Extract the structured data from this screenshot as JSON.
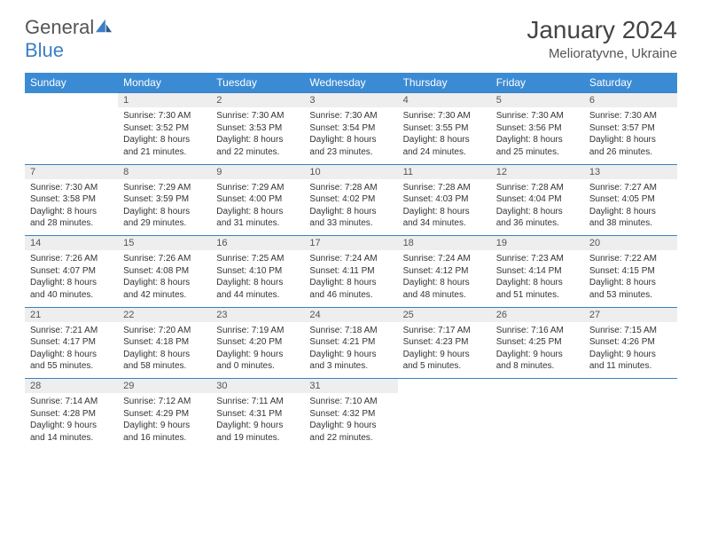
{
  "logo": {
    "text1": "General",
    "text2": "Blue"
  },
  "title": "January 2024",
  "location": "Melioratyvne, Ukraine",
  "colors": {
    "header_bg": "#3b8bd4",
    "header_fg": "#ffffff",
    "border": "#3b7fc4",
    "daynum_bg": "#eeeeee"
  },
  "weekdays": [
    "Sunday",
    "Monday",
    "Tuesday",
    "Wednesday",
    "Thursday",
    "Friday",
    "Saturday"
  ],
  "weeks": [
    [
      null,
      {
        "n": "1",
        "sr": "Sunrise: 7:30 AM",
        "ss": "Sunset: 3:52 PM",
        "d1": "Daylight: 8 hours",
        "d2": "and 21 minutes."
      },
      {
        "n": "2",
        "sr": "Sunrise: 7:30 AM",
        "ss": "Sunset: 3:53 PM",
        "d1": "Daylight: 8 hours",
        "d2": "and 22 minutes."
      },
      {
        "n": "3",
        "sr": "Sunrise: 7:30 AM",
        "ss": "Sunset: 3:54 PM",
        "d1": "Daylight: 8 hours",
        "d2": "and 23 minutes."
      },
      {
        "n": "4",
        "sr": "Sunrise: 7:30 AM",
        "ss": "Sunset: 3:55 PM",
        "d1": "Daylight: 8 hours",
        "d2": "and 24 minutes."
      },
      {
        "n": "5",
        "sr": "Sunrise: 7:30 AM",
        "ss": "Sunset: 3:56 PM",
        "d1": "Daylight: 8 hours",
        "d2": "and 25 minutes."
      },
      {
        "n": "6",
        "sr": "Sunrise: 7:30 AM",
        "ss": "Sunset: 3:57 PM",
        "d1": "Daylight: 8 hours",
        "d2": "and 26 minutes."
      }
    ],
    [
      {
        "n": "7",
        "sr": "Sunrise: 7:30 AM",
        "ss": "Sunset: 3:58 PM",
        "d1": "Daylight: 8 hours",
        "d2": "and 28 minutes."
      },
      {
        "n": "8",
        "sr": "Sunrise: 7:29 AM",
        "ss": "Sunset: 3:59 PM",
        "d1": "Daylight: 8 hours",
        "d2": "and 29 minutes."
      },
      {
        "n": "9",
        "sr": "Sunrise: 7:29 AM",
        "ss": "Sunset: 4:00 PM",
        "d1": "Daylight: 8 hours",
        "d2": "and 31 minutes."
      },
      {
        "n": "10",
        "sr": "Sunrise: 7:28 AM",
        "ss": "Sunset: 4:02 PM",
        "d1": "Daylight: 8 hours",
        "d2": "and 33 minutes."
      },
      {
        "n": "11",
        "sr": "Sunrise: 7:28 AM",
        "ss": "Sunset: 4:03 PM",
        "d1": "Daylight: 8 hours",
        "d2": "and 34 minutes."
      },
      {
        "n": "12",
        "sr": "Sunrise: 7:28 AM",
        "ss": "Sunset: 4:04 PM",
        "d1": "Daylight: 8 hours",
        "d2": "and 36 minutes."
      },
      {
        "n": "13",
        "sr": "Sunrise: 7:27 AM",
        "ss": "Sunset: 4:05 PM",
        "d1": "Daylight: 8 hours",
        "d2": "and 38 minutes."
      }
    ],
    [
      {
        "n": "14",
        "sr": "Sunrise: 7:26 AM",
        "ss": "Sunset: 4:07 PM",
        "d1": "Daylight: 8 hours",
        "d2": "and 40 minutes."
      },
      {
        "n": "15",
        "sr": "Sunrise: 7:26 AM",
        "ss": "Sunset: 4:08 PM",
        "d1": "Daylight: 8 hours",
        "d2": "and 42 minutes."
      },
      {
        "n": "16",
        "sr": "Sunrise: 7:25 AM",
        "ss": "Sunset: 4:10 PM",
        "d1": "Daylight: 8 hours",
        "d2": "and 44 minutes."
      },
      {
        "n": "17",
        "sr": "Sunrise: 7:24 AM",
        "ss": "Sunset: 4:11 PM",
        "d1": "Daylight: 8 hours",
        "d2": "and 46 minutes."
      },
      {
        "n": "18",
        "sr": "Sunrise: 7:24 AM",
        "ss": "Sunset: 4:12 PM",
        "d1": "Daylight: 8 hours",
        "d2": "and 48 minutes."
      },
      {
        "n": "19",
        "sr": "Sunrise: 7:23 AM",
        "ss": "Sunset: 4:14 PM",
        "d1": "Daylight: 8 hours",
        "d2": "and 51 minutes."
      },
      {
        "n": "20",
        "sr": "Sunrise: 7:22 AM",
        "ss": "Sunset: 4:15 PM",
        "d1": "Daylight: 8 hours",
        "d2": "and 53 minutes."
      }
    ],
    [
      {
        "n": "21",
        "sr": "Sunrise: 7:21 AM",
        "ss": "Sunset: 4:17 PM",
        "d1": "Daylight: 8 hours",
        "d2": "and 55 minutes."
      },
      {
        "n": "22",
        "sr": "Sunrise: 7:20 AM",
        "ss": "Sunset: 4:18 PM",
        "d1": "Daylight: 8 hours",
        "d2": "and 58 minutes."
      },
      {
        "n": "23",
        "sr": "Sunrise: 7:19 AM",
        "ss": "Sunset: 4:20 PM",
        "d1": "Daylight: 9 hours",
        "d2": "and 0 minutes."
      },
      {
        "n": "24",
        "sr": "Sunrise: 7:18 AM",
        "ss": "Sunset: 4:21 PM",
        "d1": "Daylight: 9 hours",
        "d2": "and 3 minutes."
      },
      {
        "n": "25",
        "sr": "Sunrise: 7:17 AM",
        "ss": "Sunset: 4:23 PM",
        "d1": "Daylight: 9 hours",
        "d2": "and 5 minutes."
      },
      {
        "n": "26",
        "sr": "Sunrise: 7:16 AM",
        "ss": "Sunset: 4:25 PM",
        "d1": "Daylight: 9 hours",
        "d2": "and 8 minutes."
      },
      {
        "n": "27",
        "sr": "Sunrise: 7:15 AM",
        "ss": "Sunset: 4:26 PM",
        "d1": "Daylight: 9 hours",
        "d2": "and 11 minutes."
      }
    ],
    [
      {
        "n": "28",
        "sr": "Sunrise: 7:14 AM",
        "ss": "Sunset: 4:28 PM",
        "d1": "Daylight: 9 hours",
        "d2": "and 14 minutes."
      },
      {
        "n": "29",
        "sr": "Sunrise: 7:12 AM",
        "ss": "Sunset: 4:29 PM",
        "d1": "Daylight: 9 hours",
        "d2": "and 16 minutes."
      },
      {
        "n": "30",
        "sr": "Sunrise: 7:11 AM",
        "ss": "Sunset: 4:31 PM",
        "d1": "Daylight: 9 hours",
        "d2": "and 19 minutes."
      },
      {
        "n": "31",
        "sr": "Sunrise: 7:10 AM",
        "ss": "Sunset: 4:32 PM",
        "d1": "Daylight: 9 hours",
        "d2": "and 22 minutes."
      },
      null,
      null,
      null
    ]
  ]
}
